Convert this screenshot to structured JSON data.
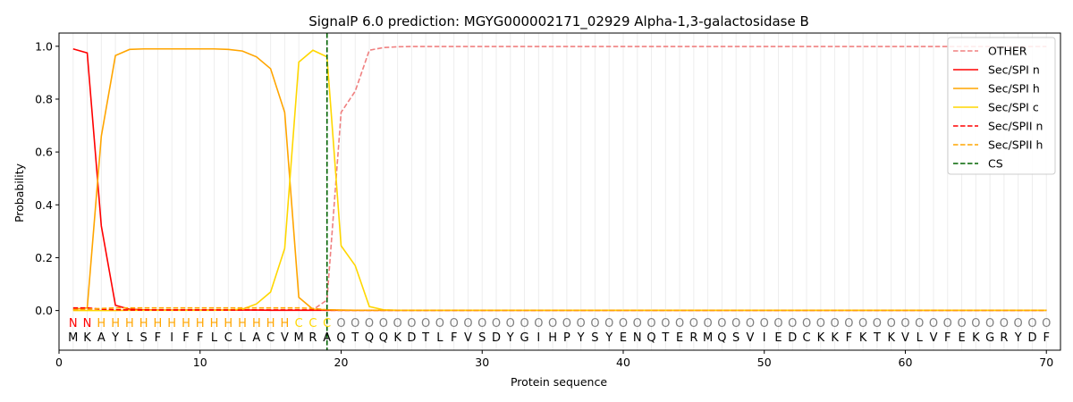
{
  "chart_data": {
    "type": "line",
    "title": "SignalP 6.0 prediction: MGYG000002171_02929 Alpha-1,3-galactosidase B",
    "xlabel": "Protein sequence",
    "ylabel": "Probability",
    "xlim": [
      0,
      71
    ],
    "ylim": [
      -0.15,
      1.05
    ],
    "xticks": [
      0,
      10,
      20,
      30,
      40,
      50,
      60,
      70
    ],
    "yticks": [
      0.0,
      0.2,
      0.4,
      0.6,
      0.8,
      1.0
    ],
    "xtick_labels": [
      "0",
      "10",
      "20",
      "30",
      "40",
      "50",
      "60",
      "70"
    ],
    "ytick_labels": [
      "0.0",
      "0.2",
      "0.4",
      "0.6",
      "0.8",
      "1.0"
    ],
    "grid": "vertical lines at each residue",
    "legend_position": "top-right",
    "sequence": [
      "M",
      "K",
      "A",
      "Y",
      "L",
      "S",
      "F",
      "I",
      "F",
      "F",
      "L",
      "C",
      "L",
      "A",
      "C",
      "V",
      "M",
      "R",
      "A",
      "Q",
      "T",
      "Q",
      "Q",
      "K",
      "D",
      "T",
      "L",
      "F",
      "V",
      "S",
      "D",
      "Y",
      "G",
      "I",
      "H",
      "P",
      "Y",
      "S",
      "Y",
      "E",
      "N",
      "Q",
      "T",
      "E",
      "R",
      "M",
      "Q",
      "S",
      "V",
      "I",
      "E",
      "D",
      "C",
      "K",
      "K",
      "F",
      "K",
      "T",
      "K",
      "V",
      "L",
      "V",
      "F",
      "E",
      "K",
      "G",
      "R",
      "Y",
      "D",
      "F"
    ],
    "labels": [
      "N",
      "N",
      "H",
      "H",
      "H",
      "H",
      "H",
      "H",
      "H",
      "H",
      "H",
      "H",
      "H",
      "H",
      "H",
      "H",
      "C",
      "C",
      "C",
      "O",
      "O",
      "O",
      "O",
      "O",
      "O",
      "O",
      "O",
      "O",
      "O",
      "O",
      "O",
      "O",
      "O",
      "O",
      "O",
      "O",
      "O",
      "O",
      "O",
      "O",
      "O",
      "O",
      "O",
      "O",
      "O",
      "O",
      "O",
      "O",
      "O",
      "O",
      "O",
      "O",
      "O",
      "O",
      "O",
      "O",
      "O",
      "O",
      "O",
      "O",
      "O",
      "O",
      "O",
      "O",
      "O",
      "O",
      "O",
      "O",
      "O",
      "O"
    ],
    "label_colors": {
      "N": "#ff0000",
      "H": "#ffa500",
      "C": "#ffd700",
      "O": "#808080"
    },
    "cleavage_site": 19,
    "series": [
      {
        "name": "OTHER",
        "color": "#f08080",
        "dash": "dashed",
        "values": [
          0.003,
          0.003,
          0.003,
          0.003,
          0.003,
          0.003,
          0.003,
          0.003,
          0.003,
          0.003,
          0.003,
          0.003,
          0.003,
          0.003,
          0.003,
          0.003,
          0.003,
          0.003,
          0.04,
          0.75,
          0.83,
          0.985,
          0.995,
          0.998,
          0.999,
          0.999,
          0.999,
          0.999,
          0.999,
          0.999,
          0.999,
          0.999,
          0.999,
          0.999,
          0.999,
          0.999,
          0.999,
          0.999,
          0.999,
          0.999,
          0.999,
          0.999,
          0.999,
          0.999,
          0.999,
          0.999,
          0.999,
          0.999,
          0.999,
          0.999,
          0.999,
          0.999,
          0.999,
          0.999,
          0.999,
          0.999,
          0.999,
          0.999,
          0.999,
          0.999,
          0.999,
          0.999,
          0.999,
          0.999,
          0.999,
          0.999,
          0.999,
          0.999,
          0.999,
          0.999
        ]
      },
      {
        "name": "Sec/SPI n",
        "color": "#ff0000",
        "dash": "solid",
        "values": [
          0.99,
          0.975,
          0.32,
          0.02,
          0.005,
          0.003,
          0.002,
          0.002,
          0.002,
          0.002,
          0.002,
          0.002,
          0.002,
          0.002,
          0.001,
          0.001,
          0.001,
          0.001,
          0.001,
          0.001,
          0.001,
          0.001,
          0.001,
          0.001,
          0.001,
          0.001,
          0.001,
          0.001,
          0.001,
          0.001,
          0.001,
          0.001,
          0.001,
          0.001,
          0.001,
          0.001,
          0.001,
          0.001,
          0.001,
          0.001,
          0.001,
          0.001,
          0.001,
          0.001,
          0.001,
          0.001,
          0.001,
          0.001,
          0.001,
          0.001,
          0.001,
          0.001,
          0.001,
          0.001,
          0.001,
          0.001,
          0.001,
          0.001,
          0.001,
          0.001,
          0.001,
          0.001,
          0.001,
          0.001,
          0.001,
          0.001,
          0.001,
          0.001,
          0.001,
          0.001
        ]
      },
      {
        "name": "Sec/SPI h",
        "color": "#ffa500",
        "dash": "solid",
        "values": [
          0.005,
          0.01,
          0.66,
          0.965,
          0.988,
          0.99,
          0.99,
          0.99,
          0.99,
          0.99,
          0.99,
          0.988,
          0.982,
          0.96,
          0.915,
          0.75,
          0.05,
          0.005,
          0.003,
          0.002,
          0.001,
          0.001,
          0.001,
          0.001,
          0.001,
          0.001,
          0.001,
          0.001,
          0.001,
          0.001,
          0.001,
          0.001,
          0.001,
          0.001,
          0.001,
          0.001,
          0.001,
          0.001,
          0.001,
          0.001,
          0.001,
          0.001,
          0.001,
          0.001,
          0.001,
          0.001,
          0.001,
          0.001,
          0.001,
          0.001,
          0.001,
          0.001,
          0.001,
          0.001,
          0.001,
          0.001,
          0.001,
          0.001,
          0.001,
          0.001,
          0.001,
          0.001,
          0.001,
          0.001,
          0.001,
          0.001,
          0.001,
          0.001,
          0.001,
          0.001
        ]
      },
      {
        "name": "Sec/SPI c",
        "color": "#ffd700",
        "dash": "solid",
        "values": [
          0.0,
          0.0,
          0.0,
          0.0,
          0.001,
          0.001,
          0.001,
          0.001,
          0.001,
          0.001,
          0.001,
          0.002,
          0.005,
          0.025,
          0.07,
          0.235,
          0.94,
          0.985,
          0.96,
          0.245,
          0.17,
          0.015,
          0.003,
          0.001,
          0.001,
          0.001,
          0.001,
          0.001,
          0.001,
          0.001,
          0.001,
          0.001,
          0.001,
          0.001,
          0.001,
          0.001,
          0.001,
          0.001,
          0.001,
          0.001,
          0.001,
          0.001,
          0.001,
          0.001,
          0.001,
          0.001,
          0.001,
          0.001,
          0.001,
          0.001,
          0.001,
          0.001,
          0.001,
          0.001,
          0.001,
          0.001,
          0.001,
          0.001,
          0.001,
          0.001,
          0.001,
          0.001,
          0.001,
          0.001,
          0.001,
          0.001,
          0.001,
          0.001,
          0.001,
          0.001
        ]
      },
      {
        "name": "Sec/SPII n",
        "color": "#ff0000",
        "dash": "dashed",
        "values": [
          0.01,
          0.01,
          0.005,
          0.003,
          0.002,
          0.002,
          0.002,
          0.002,
          0.002,
          0.002,
          0.002,
          0.002,
          0.002,
          0.002,
          0.002,
          0.002,
          0.002,
          0.002,
          0.001,
          0.001,
          0.001,
          0.001,
          0.001,
          0.001,
          0.001,
          0.001,
          0.001,
          0.001,
          0.001,
          0.001,
          0.001,
          0.001,
          0.001,
          0.001,
          0.001,
          0.001,
          0.001,
          0.001,
          0.001,
          0.001,
          0.001,
          0.001,
          0.001,
          0.001,
          0.001,
          0.001,
          0.001,
          0.001,
          0.001,
          0.001,
          0.001,
          0.001,
          0.001,
          0.001,
          0.001,
          0.001,
          0.001,
          0.001,
          0.001,
          0.001,
          0.001,
          0.001,
          0.001,
          0.001,
          0.001,
          0.001,
          0.001,
          0.001,
          0.001,
          0.001
        ]
      },
      {
        "name": "Sec/SPII h",
        "color": "#ffa500",
        "dash": "dashed",
        "values": [
          0.003,
          0.005,
          0.008,
          0.01,
          0.01,
          0.01,
          0.01,
          0.01,
          0.01,
          0.01,
          0.01,
          0.01,
          0.01,
          0.01,
          0.01,
          0.01,
          0.01,
          0.008,
          0.003,
          0.001,
          0.001,
          0.001,
          0.001,
          0.001,
          0.001,
          0.001,
          0.001,
          0.001,
          0.001,
          0.001,
          0.001,
          0.001,
          0.001,
          0.001,
          0.001,
          0.001,
          0.001,
          0.001,
          0.001,
          0.001,
          0.001,
          0.001,
          0.001,
          0.001,
          0.001,
          0.001,
          0.001,
          0.001,
          0.001,
          0.001,
          0.001,
          0.001,
          0.001,
          0.001,
          0.001,
          0.001,
          0.001,
          0.001,
          0.001,
          0.001,
          0.001,
          0.001,
          0.001,
          0.001,
          0.001,
          0.001,
          0.001,
          0.001,
          0.001,
          0.001
        ]
      },
      {
        "name": "CS",
        "color": "#006400",
        "dash": "dashed",
        "x": 19
      }
    ]
  }
}
